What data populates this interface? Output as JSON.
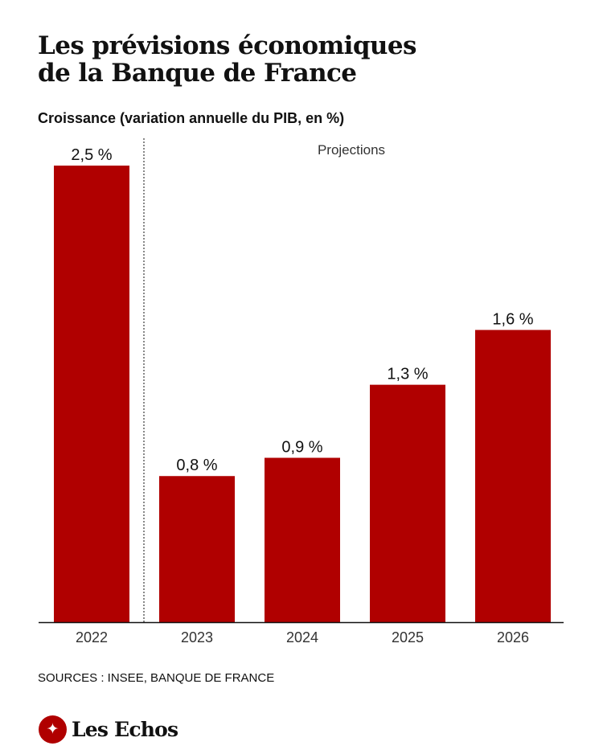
{
  "title_lines": [
    "Les prévisions économiques",
    "de la Banque de France"
  ],
  "subtitle": "Croissance (variation annuelle du PIB, en %)",
  "sources": "SOURCES : INSEE, BANQUE DE FRANCE",
  "brand": {
    "name": "Les Echos",
    "logo_icon": "echos-bird-icon",
    "logo_glyph": "✦"
  },
  "colors": {
    "bar": "#b00000",
    "text": "#111111",
    "axis": "#111111",
    "projection_label": "#333333"
  },
  "chart_data": {
    "type": "bar",
    "title": "Croissance (variation annuelle du PIB, en %)",
    "categories": [
      "2022",
      "2023",
      "2024",
      "2025",
      "2026"
    ],
    "values": [
      2.5,
      0.8,
      0.9,
      1.3,
      1.6
    ],
    "value_labels": [
      "2,5 %",
      "0,8 %",
      "0,9 %",
      "1,3 %",
      "1,6 %"
    ],
    "ylim": [
      0,
      2.5
    ],
    "grid": false,
    "annotation": {
      "text": "Projections",
      "start_category": "2023"
    }
  }
}
